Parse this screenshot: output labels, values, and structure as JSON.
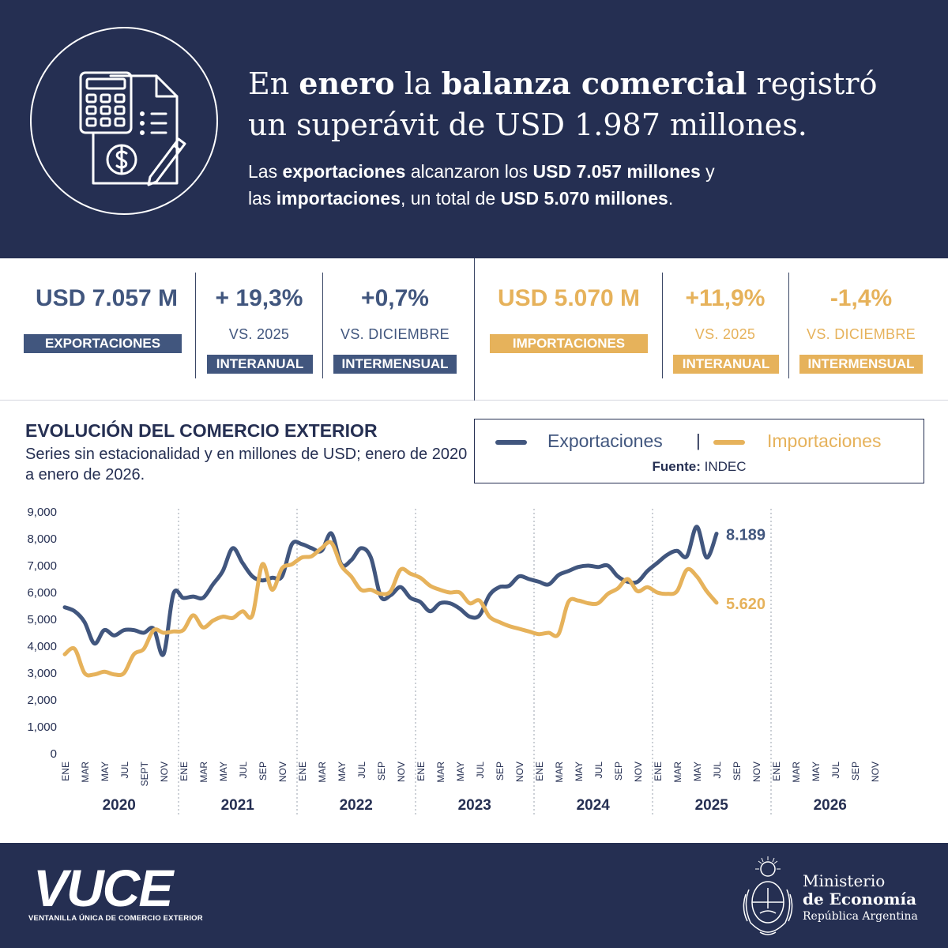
{
  "header": {
    "headline_parts": [
      "En ",
      "enero",
      " la ",
      "balanza comercial",
      " registró",
      "un superávit de USD 1.987 millones."
    ],
    "sub_parts": [
      "Las ",
      "exportaciones",
      " alcanzaron los ",
      "USD 7.057 millones",
      " y",
      "las ",
      "importaciones",
      ", un total de ",
      "USD 5.070 millones",
      "."
    ]
  },
  "stats": {
    "exports": {
      "value": "USD 7.057 M",
      "label": "EXPORTACIONES",
      "yoy_value": "+ 19,3%",
      "yoy_ref": "VS. 2025",
      "yoy_tag": "INTERANUAL",
      "mom_value": "+0,7%",
      "mom_ref": "VS. DICIEMBRE",
      "mom_tag": "INTERMENSUAL"
    },
    "imports": {
      "value": "USD 5.070 M",
      "label": "IMPORTACIONES",
      "yoy_value": "+11,9%",
      "yoy_ref": "VS. 2025",
      "yoy_tag": "INTERANUAL",
      "mom_value": "-1,4%",
      "mom_ref": "VS. DICIEMBRE",
      "mom_tag": "INTERMENSUAL"
    }
  },
  "legend": {
    "exports": "Exportaciones",
    "separator": "|",
    "imports": "Importaciones",
    "source_label": "Fuente:",
    "source": "INDEC"
  },
  "colors": {
    "navy": "#252f52",
    "exports": "#41567e",
    "imports": "#e6b25b"
  },
  "chart_data": {
    "type": "line",
    "title": "EVOLUCIÓN DEL COMERCIO EXTERIOR",
    "subtitle": "Series sin estacionalidad y en millones de USD; enero de 2020 a enero de 2026.",
    "ylim": [
      0,
      9000
    ],
    "yticks": [
      "0",
      "1,000",
      "2,000",
      "3,000",
      "4,000",
      "5,000",
      "6,000",
      "7,000",
      "8,000",
      "9,000"
    ],
    "month_labels": [
      "ENE",
      "MAR",
      "MAY",
      "JUL",
      "SEPT",
      "NOV",
      "ENE",
      "MAR",
      "MAY",
      "JUL",
      "SEP",
      "NOV",
      "ENE",
      "MAR",
      "MAY",
      "JUL",
      "SEP",
      "NOV",
      "ENE",
      "MAR",
      "MAY",
      "JUL",
      "SEP",
      "NOV",
      "ENE",
      "MAR",
      "MAY",
      "JUL",
      "SEP",
      "NOV",
      "ENE",
      "MAR",
      "MAY",
      "JUL",
      "SEP",
      "NOV",
      "ENE",
      "MAR",
      "MAY",
      "JUL",
      "SEP",
      "NOV"
    ],
    "years": [
      "2020",
      "2021",
      "2022",
      "2023",
      "2024",
      "2025",
      "2026"
    ],
    "grid": false,
    "legend_position": "top-right",
    "series": [
      {
        "name": "Exportaciones",
        "end_label": "8.189",
        "values": [
          5450,
          5300,
          4900,
          4100,
          4600,
          4400,
          4600,
          4600,
          4500,
          4650,
          3700,
          5950,
          5800,
          5850,
          5800,
          6300,
          6800,
          7650,
          7100,
          6600,
          6450,
          6550,
          6600,
          7800,
          7800,
          7650,
          7550,
          8200,
          7050,
          7200,
          7650,
          7300,
          5850,
          5900,
          6200,
          5800,
          5650,
          5300,
          5600,
          5600,
          5400,
          5100,
          5150,
          5900,
          6200,
          6250,
          6600,
          6500,
          6400,
          6300,
          6650,
          6800,
          6950,
          7000,
          6950,
          7000,
          6600,
          6400,
          6400,
          6800,
          7100,
          7400,
          7550,
          7350,
          8450,
          7300,
          8189
        ]
      },
      {
        "name": "Importaciones",
        "end_label": "5.620",
        "values": [
          3700,
          3900,
          3000,
          2950,
          3050,
          2950,
          3000,
          3700,
          3900,
          4600,
          4500,
          4550,
          4600,
          5150,
          4700,
          4950,
          5100,
          5050,
          5300,
          5150,
          7050,
          6100,
          6900,
          7050,
          7300,
          7350,
          7650,
          7850,
          7000,
          6600,
          6100,
          6100,
          5950,
          6050,
          6850,
          6700,
          6550,
          6250,
          6100,
          6000,
          6000,
          5600,
          5700,
          5100,
          4900,
          4750,
          4650,
          4550,
          4450,
          4500,
          4450,
          5650,
          5700,
          5600,
          5600,
          5950,
          6150,
          6500,
          6050,
          6200,
          6000,
          5950,
          6050,
          6850,
          6600,
          6050,
          5620
        ]
      }
    ],
    "x_index_note_months_from_jan_2020": true
  },
  "footer": {
    "vuce_logo": "VUCE",
    "vuce_sub": "VENTANILLA ÚNICA DE COMERCIO EXTERIOR",
    "ministry_line1": "Ministerio",
    "ministry_line2": "de Economía",
    "ministry_line3": "República Argentina"
  }
}
